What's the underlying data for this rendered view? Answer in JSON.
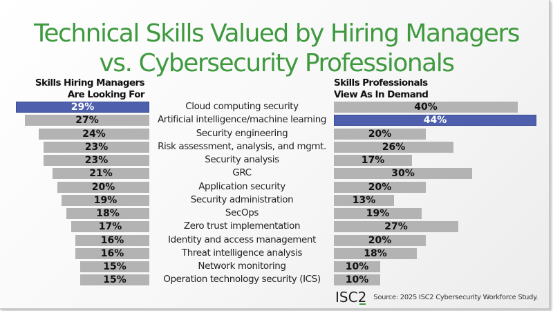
{
  "title": {
    "line1": "Technical Skills Valued by Hiring Managers",
    "line2": "vs. Cybersecurity Professionals"
  },
  "left_header": {
    "line1": "Skills Hiring Managers",
    "line2": "Are Looking For"
  },
  "right_header": {
    "line1": "Skills Professionals",
    "line2": "View As In Demand"
  },
  "colors": {
    "bar": "#b3b3b3",
    "highlight": "#4e5fad",
    "title": "#3f9a3f"
  },
  "footer": {
    "logo": "ISC2",
    "source": "Source: 2025 ISC2 Cybersecurity Workforce Study."
  },
  "rows": [
    {
      "skill": "Cloud computing security",
      "hm": "29%",
      "pro": "40%"
    },
    {
      "skill": "Artificial intelligence/machine learning",
      "hm": "27%",
      "pro": "44%"
    },
    {
      "skill": "Security engineering",
      "hm": "24%",
      "pro": "20%"
    },
    {
      "skill": "Risk assessment, analysis, and mgmt.",
      "hm": "23%",
      "pro": "26%"
    },
    {
      "skill": "Security analysis",
      "hm": "23%",
      "pro": "17%"
    },
    {
      "skill": "GRC",
      "hm": "21%",
      "pro": "30%"
    },
    {
      "skill": "Application security",
      "hm": "20%",
      "pro": "20%"
    },
    {
      "skill": "Security administration",
      "hm": "19%",
      "pro": "13%"
    },
    {
      "skill": "SecOps",
      "hm": "18%",
      "pro": "19%"
    },
    {
      "skill": "Zero trust implementation",
      "hm": "17%",
      "pro": "27%"
    },
    {
      "skill": "Identity and access management",
      "hm": "16%",
      "pro": "20%"
    },
    {
      "skill": "Threat intelligence analysis",
      "hm": "16%",
      "pro": "18%"
    },
    {
      "skill": "Network monitoring",
      "hm": "15%",
      "pro": "10%"
    },
    {
      "skill": "Operation technology security (ICS)",
      "hm": "15%",
      "pro": "10%"
    }
  ],
  "chart_data": {
    "type": "bar",
    "orientation": "horizontal",
    "layout": "butterfly",
    "title": "Technical Skills Valued by Hiring Managers vs. Cybersecurity Professionals",
    "categories": [
      "Cloud computing security",
      "Artificial intelligence/machine learning",
      "Security engineering",
      "Risk assessment, analysis, and mgmt.",
      "Security analysis",
      "GRC",
      "Application security",
      "Security administration",
      "SecOps",
      "Zero trust implementation",
      "Identity and access management",
      "Threat intelligence analysis",
      "Network monitoring",
      "Operation technology security (ICS)"
    ],
    "series": [
      {
        "name": "Skills Hiring Managers Are Looking For",
        "side": "left",
        "values": [
          29,
          27,
          24,
          23,
          23,
          21,
          20,
          19,
          18,
          17,
          16,
          16,
          15,
          15
        ],
        "highlight_index": 0
      },
      {
        "name": "Skills Professionals View As In Demand",
        "side": "right",
        "values": [
          40,
          44,
          20,
          26,
          17,
          30,
          20,
          13,
          19,
          27,
          20,
          18,
          10,
          10
        ],
        "highlight_index": 1
      }
    ],
    "unit": "%",
    "grid": false,
    "legend": "column headers",
    "annotation": "Source: 2025 ISC2 Cybersecurity Workforce Study."
  }
}
